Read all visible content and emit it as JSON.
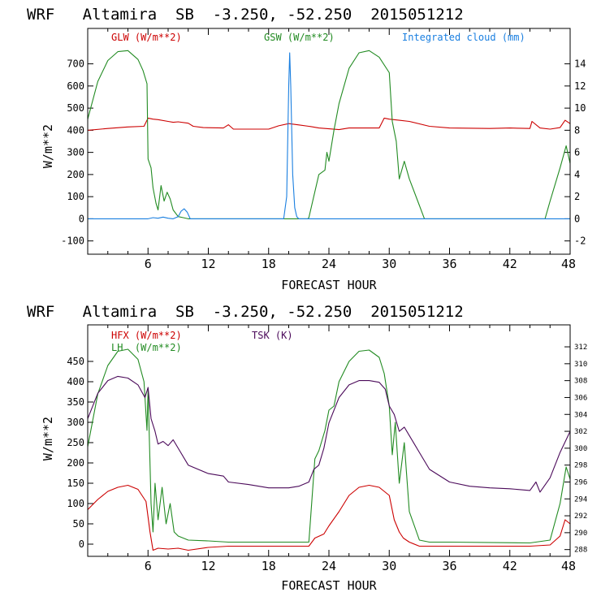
{
  "colors": {
    "glw": "#cc0000",
    "gsw": "#228b22",
    "cloud": "#1a7fe0",
    "hfx": "#cc0000",
    "lh": "#228b22",
    "tsk": "#4b0a5a",
    "axis": "#000000"
  },
  "chart_data": [
    {
      "type": "line",
      "title": "WRF   Altamira  SB  -3.250, -52.250  2015051212",
      "xlabel": "FORECAST HOUR",
      "ylabel": "W/m**2",
      "xlim": [
        0,
        48
      ],
      "ylim": [
        -160,
        860
      ],
      "y2lim": [
        -3.2,
        17.2
      ],
      "xticks": [
        6,
        12,
        18,
        24,
        30,
        36,
        42,
        48
      ],
      "yticks": [
        -100,
        0,
        100,
        200,
        300,
        400,
        500,
        600,
        700
      ],
      "y2ticks": [
        -2,
        0,
        2,
        4,
        6,
        8,
        10,
        12,
        14
      ],
      "legend": [
        {
          "label": "GLW (W/m**2)",
          "series": "glw"
        },
        {
          "label": "GSW (W/m**2)",
          "series": "gsw"
        },
        {
          "label": "Integrated cloud (mm)",
          "series": "cloud"
        }
      ],
      "series": [
        {
          "name": "glw",
          "label": "GLW (W/m**2)",
          "axis": "left",
          "x": [
            0,
            2,
            4,
            5.6,
            6,
            6.5,
            7,
            8,
            8.5,
            9,
            10,
            10.5,
            11.5,
            13.5,
            14,
            14.5,
            18,
            19,
            20,
            21,
            22,
            23,
            25,
            26,
            29,
            29.5,
            30,
            31,
            32,
            34,
            36,
            40,
            42,
            44,
            44.2,
            45,
            46,
            47,
            47.5,
            48
          ],
          "y": [
            400,
            408,
            415,
            418,
            455,
            450,
            448,
            440,
            436,
            438,
            432,
            418,
            412,
            410,
            425,
            405,
            405,
            420,
            430,
            424,
            418,
            410,
            403,
            410,
            410,
            455,
            450,
            445,
            440,
            418,
            410,
            408,
            410,
            408,
            440,
            410,
            405,
            412,
            445,
            430
          ]
        },
        {
          "name": "gsw",
          "label": "GSW (W/m**2)",
          "axis": "left",
          "x": [
            0,
            1,
            2,
            3,
            4,
            5,
            5.5,
            5.9,
            6,
            6.3,
            6.5,
            6.8,
            7,
            7.3,
            7.6,
            7.9,
            8.2,
            8.5,
            9,
            9.5,
            10,
            21.9,
            22,
            23,
            23.6,
            23.8,
            24,
            24.5,
            25,
            26,
            27,
            28,
            29,
            30,
            30.3,
            30.7,
            31,
            31.5,
            32,
            33,
            33.5,
            45.5,
            46,
            47,
            47.6,
            48
          ],
          "y": [
            450,
            620,
            715,
            755,
            760,
            720,
            670,
            610,
            270,
            230,
            140,
            70,
            40,
            150,
            80,
            120,
            90,
            40,
            10,
            5,
            0,
            0,
            5,
            200,
            220,
            300,
            260,
            400,
            520,
            680,
            750,
            760,
            730,
            660,
            440,
            350,
            180,
            260,
            180,
            60,
            0,
            0,
            80,
            230,
            330,
            250
          ]
        },
        {
          "name": "cloud",
          "label": "Integrated cloud (mm)",
          "axis": "right",
          "x": [
            0,
            6,
            6.5,
            7,
            7.5,
            8,
            8.5,
            9,
            9.3,
            9.6,
            9.9,
            10.2,
            19.5,
            19.8,
            20,
            20.1,
            20.2,
            20.4,
            20.6,
            20.8,
            21,
            48
          ],
          "y": [
            0,
            0,
            0.1,
            0.05,
            0.15,
            0.05,
            0,
            0.2,
            0.7,
            0.9,
            0.6,
            0,
            0,
            2,
            12,
            15,
            12,
            4,
            1,
            0.2,
            0,
            0
          ]
        }
      ]
    },
    {
      "type": "line",
      "title": "WRF   Altamira  SB  -3.250, -52.250  2015051212",
      "xlabel": "FORECAST HOUR",
      "ylabel": "W/m**2",
      "xlim": [
        0,
        48
      ],
      "ylim": [
        -30,
        540
      ],
      "y2lim": [
        287.2,
        314.6
      ],
      "xticks": [
        6,
        12,
        18,
        24,
        30,
        36,
        42,
        48
      ],
      "yticks": [
        0,
        50,
        100,
        150,
        200,
        250,
        300,
        350,
        400,
        450
      ],
      "y2ticks": [
        288,
        290,
        292,
        294,
        296,
        298,
        300,
        302,
        304,
        306,
        308,
        310,
        312
      ],
      "legend": [
        {
          "label": "HFX (W/m**2)",
          "series": "hfx"
        },
        {
          "label": "LH  (W/m**2)",
          "series": "lh"
        },
        {
          "label": "TSK (K)",
          "series": "tsk"
        }
      ],
      "series": [
        {
          "name": "hfx",
          "label": "HFX (W/m**2)",
          "axis": "left",
          "x": [
            0,
            1,
            2,
            3,
            4,
            5,
            5.8,
            6.2,
            6.5,
            7,
            8,
            9,
            10,
            12,
            14,
            20,
            22,
            22.6,
            23.5,
            24,
            25,
            26,
            27,
            28,
            29,
            30,
            30.5,
            31,
            31.4,
            32,
            33,
            36,
            44,
            46,
            47,
            47.5,
            48
          ],
          "y": [
            85,
            110,
            130,
            140,
            145,
            135,
            105,
            30,
            -15,
            -10,
            -12,
            -10,
            -15,
            -8,
            -5,
            -5,
            -5,
            15,
            25,
            45,
            80,
            120,
            140,
            145,
            140,
            120,
            60,
            30,
            15,
            5,
            -5,
            -5,
            -5,
            -2,
            20,
            60,
            50
          ]
        },
        {
          "name": "lh",
          "label": "LH  (W/m**2)",
          "axis": "left",
          "x": [
            0,
            1,
            2,
            3,
            4,
            5,
            5.6,
            5.9,
            6,
            6.3,
            6.5,
            6.7,
            7,
            7.4,
            7.8,
            8.2,
            8.6,
            9,
            10,
            12,
            14,
            20,
            22,
            22.6,
            23,
            23.6,
            24,
            24.5,
            25,
            26,
            27,
            28,
            29,
            29.5,
            30,
            30.3,
            30.6,
            31,
            31.5,
            32,
            33,
            34,
            36,
            44,
            46,
            47,
            47.6,
            48
          ],
          "y": [
            240,
            370,
            440,
            475,
            480,
            455,
            400,
            280,
            380,
            100,
            30,
            150,
            60,
            140,
            50,
            100,
            30,
            20,
            10,
            8,
            5,
            5,
            5,
            210,
            230,
            280,
            330,
            340,
            400,
            450,
            475,
            478,
            460,
            420,
            340,
            220,
            300,
            150,
            250,
            80,
            10,
            5,
            5,
            3,
            10,
            100,
            190,
            160
          ]
        },
        {
          "name": "tsk",
          "label": "TSK (K)",
          "axis": "right",
          "x": [
            0,
            1,
            2,
            3,
            4,
            5,
            5.7,
            6,
            6.3,
            6.7,
            7,
            7.5,
            8,
            8.5,
            9,
            10,
            12,
            13.5,
            14,
            16,
            18,
            20,
            21,
            22,
            22.5,
            23,
            23.5,
            24,
            25,
            26,
            27,
            28,
            29,
            29.6,
            30,
            30.5,
            31,
            31.5,
            32,
            33,
            34,
            36,
            38,
            40,
            42,
            44,
            44.6,
            45,
            46,
            47,
            48
          ],
          "y": [
            303.5,
            306.5,
            308,
            308.5,
            308.3,
            307.5,
            306,
            307.2,
            303.5,
            302,
            300.5,
            300.8,
            300.3,
            301,
            300,
            298,
            297,
            296.7,
            296,
            295.7,
            295.3,
            295.3,
            295.5,
            296,
            297.5,
            298,
            300,
            303,
            306,
            307.5,
            308,
            308,
            307.8,
            307,
            305,
            304,
            302,
            302.5,
            301.5,
            299.5,
            297.5,
            296,
            295.5,
            295.3,
            295.2,
            295,
            296,
            294.8,
            296.5,
            299.5,
            302
          ]
        }
      ]
    }
  ]
}
